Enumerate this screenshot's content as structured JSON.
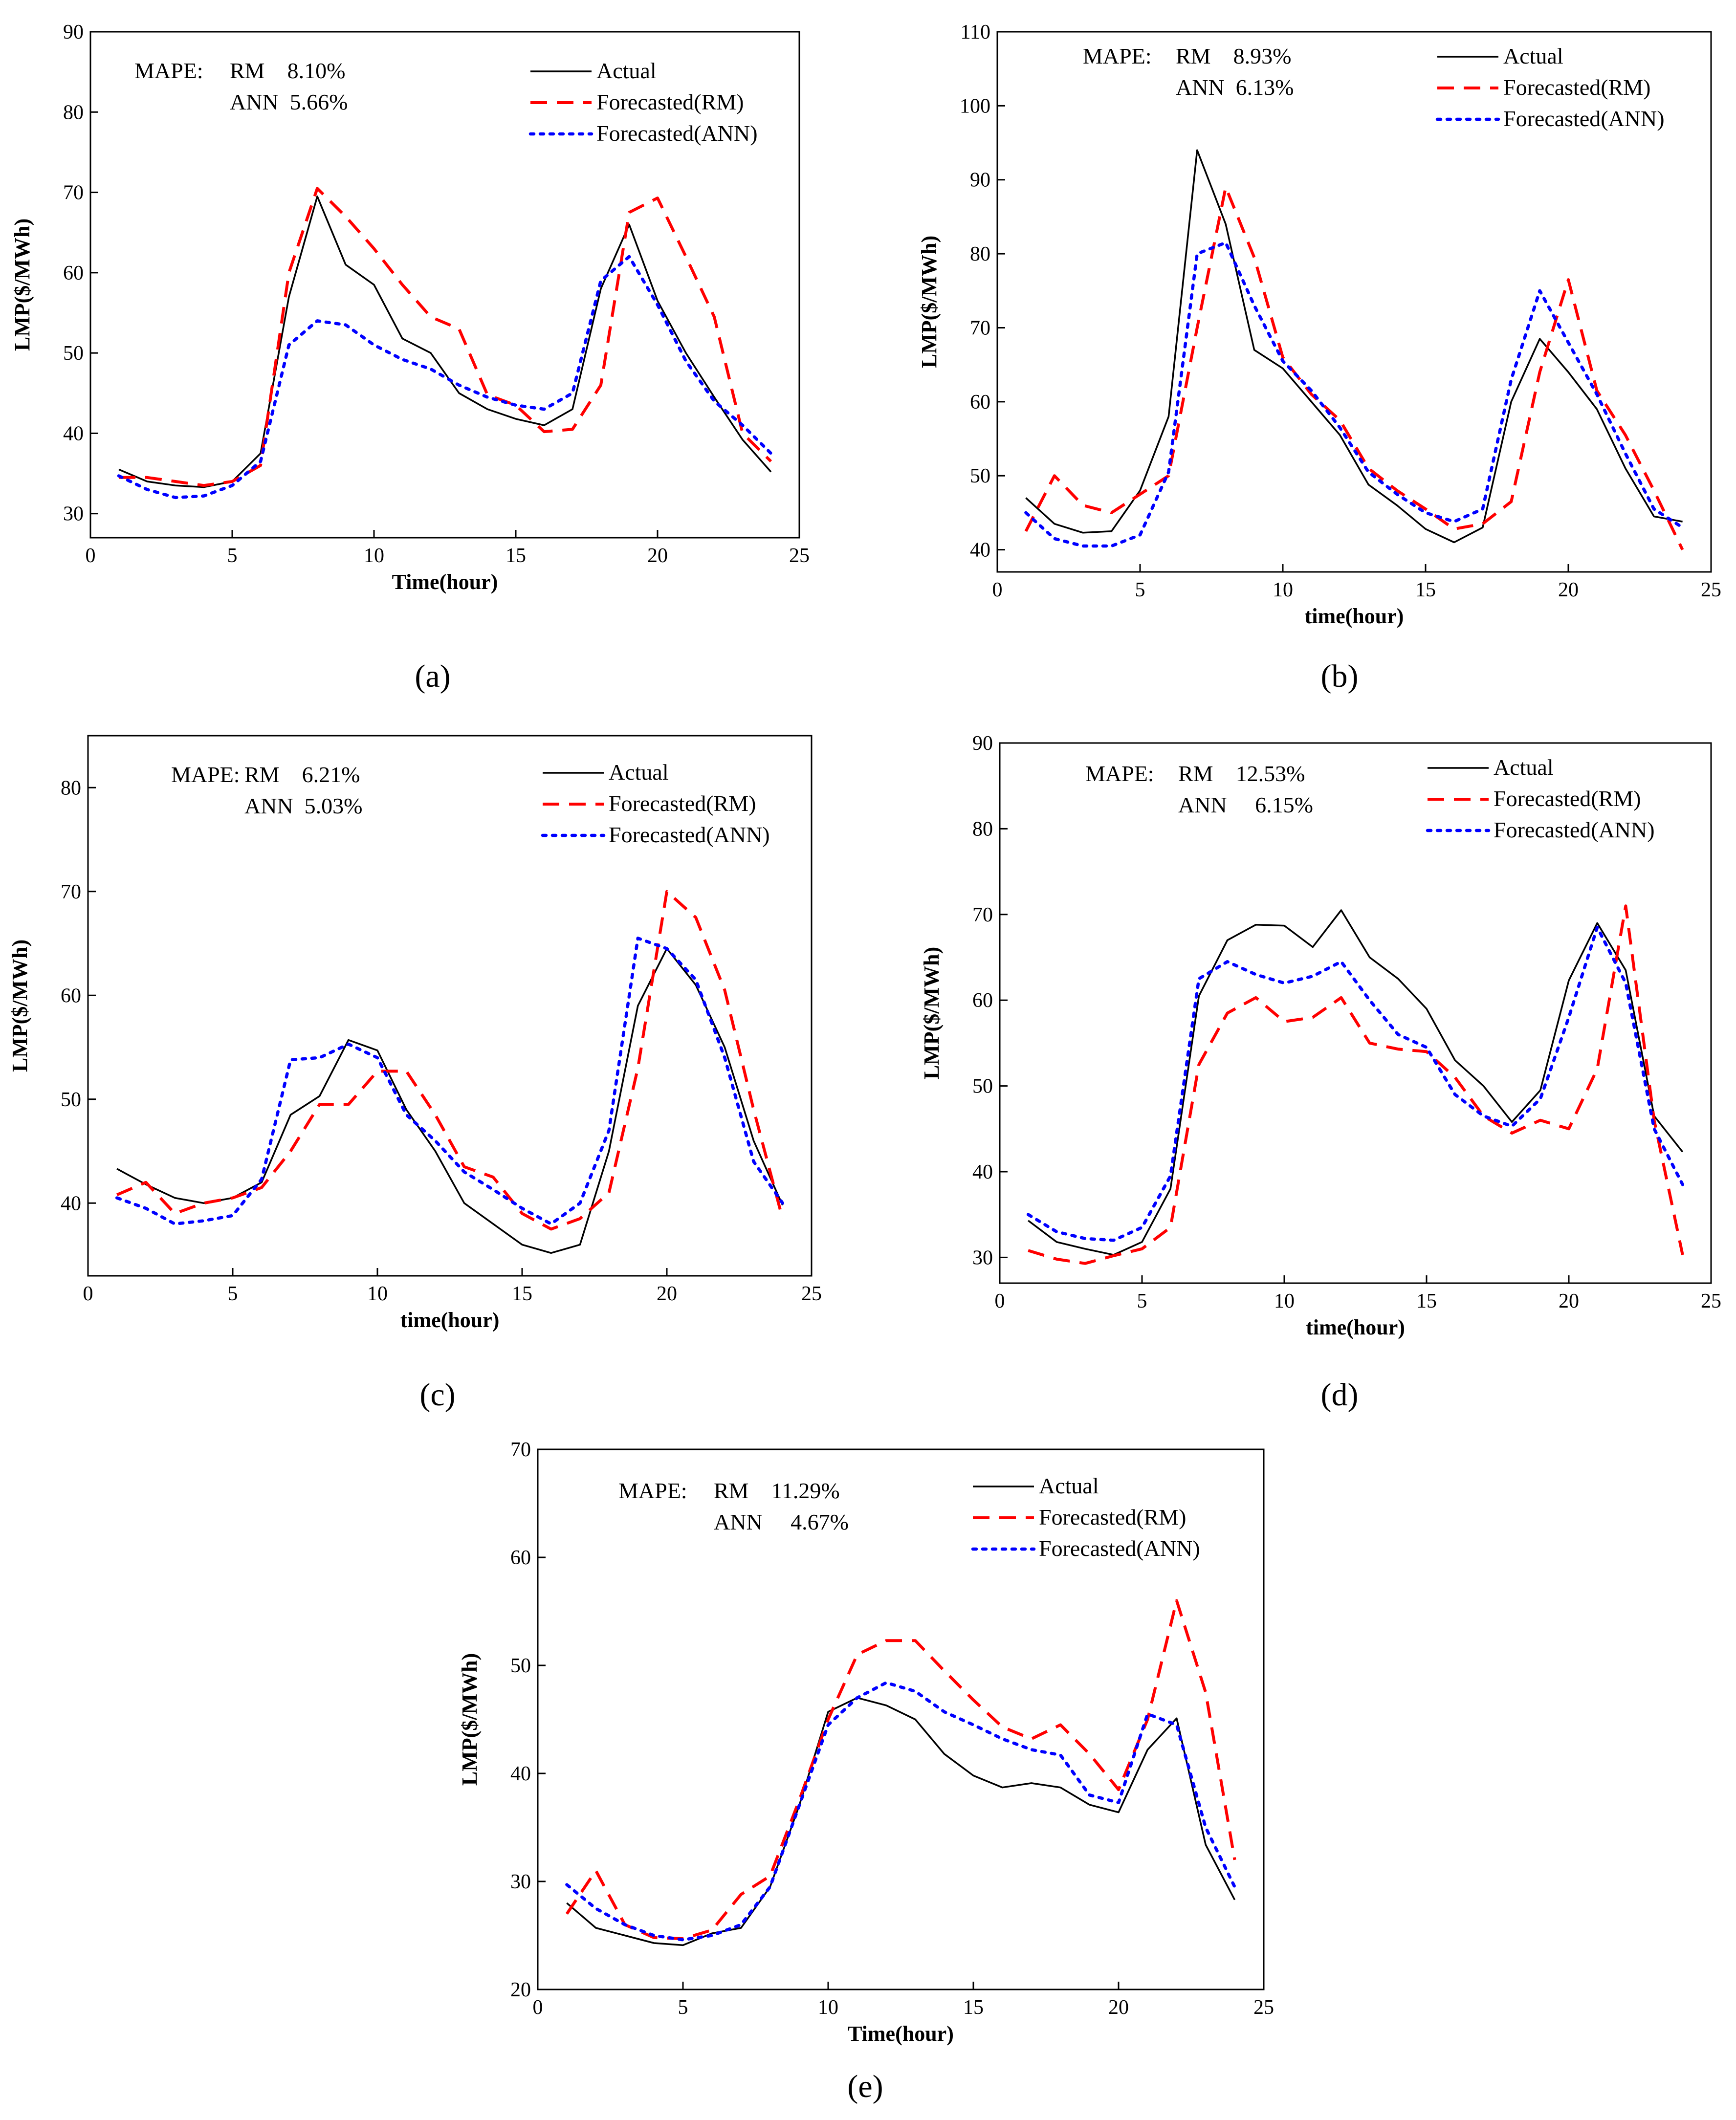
{
  "figure": {
    "legend": {
      "actual": "Actual",
      "rm": "Forecasted(RM)",
      "ann": "Forecasted(ANN)"
    },
    "colors": {
      "actual": "#000000",
      "rm": "#ff0000",
      "ann": "#0000ff"
    }
  },
  "chart_data": [
    {
      "panel": "a",
      "caption": "(a)",
      "type": "line",
      "xlabel": "Time(hour)",
      "ylabel": "LMP($/MWh)",
      "xlim": [
        0,
        25
      ],
      "ylim": [
        27,
        90
      ],
      "xticks": [
        0,
        5,
        10,
        15,
        20,
        25
      ],
      "yticks": [
        30,
        40,
        50,
        60,
        70,
        80,
        90
      ],
      "annotation": {
        "metric": "MAPE:",
        "rm": "RM    8.10%",
        "ann": "ANN  5.66%"
      },
      "x": [
        1,
        2,
        3,
        4,
        5,
        6,
        7,
        8,
        9,
        10,
        11,
        12,
        13,
        14,
        15,
        16,
        17,
        18,
        19,
        20,
        21,
        22,
        23,
        24
      ],
      "series": [
        {
          "name": "Actual",
          "style": "solid",
          "values": [
            35.5,
            34,
            33.5,
            33.3,
            34,
            37.5,
            57,
            69.5,
            61,
            58.5,
            51.8,
            50,
            45,
            43,
            41.8,
            41,
            43,
            58,
            66,
            56.5,
            50,
            44.5,
            39.2,
            35.2
          ]
        },
        {
          "name": "Forecasted(RM)",
          "style": "dashed",
          "values": [
            34.5,
            34.5,
            34,
            33.5,
            34,
            36,
            60,
            70.5,
            67,
            63,
            58.5,
            54.5,
            53,
            44.8,
            43.5,
            40.2,
            40.5,
            46,
            67.5,
            69.3,
            62,
            54.5,
            40,
            36.5
          ]
        },
        {
          "name": "Forecasted(ANN)",
          "style": "dotted",
          "values": [
            34.7,
            33,
            32,
            32.2,
            33.5,
            36.5,
            51,
            54,
            53.5,
            51,
            49.2,
            48,
            46,
            44.5,
            43.5,
            43,
            45,
            59,
            62,
            56,
            49,
            44,
            41,
            37.5
          ]
        }
      ]
    },
    {
      "panel": "b",
      "caption": "(b)",
      "type": "line",
      "xlabel": "time(hour)",
      "ylabel": "LMP($/MWh)",
      "xlim": [
        0,
        25
      ],
      "ylim": [
        37,
        110
      ],
      "xticks": [
        0,
        5,
        10,
        15,
        20,
        25
      ],
      "yticks": [
        40,
        50,
        60,
        70,
        80,
        90,
        100,
        110
      ],
      "annotation": {
        "metric": "MAPE:",
        "rm": "RM    8.93%",
        "ann": "ANN  6.13%"
      },
      "x": [
        1,
        2,
        3,
        4,
        5,
        6,
        7,
        8,
        9,
        10,
        11,
        12,
        13,
        14,
        15,
        16,
        17,
        18,
        19,
        20,
        21,
        22,
        23,
        24
      ],
      "series": [
        {
          "name": "Actual",
          "style": "solid",
          "values": [
            47,
            43.5,
            42.3,
            42.5,
            48,
            58,
            94,
            84,
            67,
            64.5,
            60,
            55.5,
            48.8,
            46,
            42.8,
            41,
            43,
            60,
            68.5,
            64,
            59,
            51,
            44.5,
            43.8
          ]
        },
        {
          "name": "Forecasted(RM)",
          "style": "dashed",
          "values": [
            42.5,
            50,
            46,
            45,
            47.5,
            50,
            70,
            89,
            79.5,
            66,
            61,
            57.5,
            51,
            48,
            45.5,
            42.8,
            43.5,
            46.5,
            64,
            76.5,
            61.5,
            55.5,
            48,
            40
          ]
        },
        {
          "name": "Forecasted(ANN)",
          "style": "dotted",
          "values": [
            45,
            41.5,
            40.5,
            40.5,
            42,
            50.5,
            80,
            81.5,
            73,
            65.5,
            61.5,
            56.5,
            50.5,
            47.5,
            45,
            43.8,
            45.5,
            63,
            75,
            68,
            61,
            53,
            45.5,
            43
          ]
        }
      ]
    },
    {
      "panel": "c",
      "caption": "(c)",
      "type": "line",
      "xlabel": "time(hour)",
      "ylabel": "LMP($/MWh)",
      "xlim": [
        0,
        25
      ],
      "ylim": [
        33,
        85
      ],
      "xticks": [
        0,
        5,
        10,
        15,
        20,
        25
      ],
      "yticks": [
        40,
        50,
        60,
        70,
        80
      ],
      "annotation": {
        "metric": "MAPE:",
        "rm": "RM    6.21%",
        "ann": "ANN  5.03%"
      },
      "x": [
        1,
        2,
        3,
        4,
        5,
        6,
        7,
        8,
        9,
        10,
        11,
        12,
        13,
        14,
        15,
        16,
        17,
        18,
        19,
        20,
        21,
        22,
        23,
        24
      ],
      "series": [
        {
          "name": "Actual",
          "style": "solid",
          "values": [
            43.3,
            41.8,
            40.5,
            40,
            40.5,
            42,
            48.5,
            50.3,
            55.7,
            54.7,
            49,
            45,
            40,
            38,
            36,
            35.2,
            36,
            45,
            59,
            64.5,
            61,
            55,
            46,
            39.8
          ]
        },
        {
          "name": "Forecasted(RM)",
          "style": "dashed",
          "values": [
            40.8,
            42,
            39,
            40,
            40.5,
            41.5,
            45,
            49.5,
            49.5,
            52.7,
            52.7,
            48.5,
            43.5,
            42.5,
            39,
            37.5,
            38.5,
            41,
            53,
            70,
            67.5,
            60.5,
            49,
            38.5
          ]
        },
        {
          "name": "Forecasted(ANN)",
          "style": "dotted",
          "values": [
            40.5,
            39.5,
            38,
            38.3,
            38.8,
            42.3,
            53.8,
            54,
            55.3,
            54,
            48.5,
            46,
            43,
            41.3,
            39.5,
            38,
            40,
            47,
            65.5,
            64.5,
            61.5,
            54,
            44,
            40
          ]
        }
      ]
    },
    {
      "panel": "d",
      "caption": "(d)",
      "type": "line",
      "xlabel": "time(hour)",
      "ylabel": "LMP($/MWh)",
      "xlim": [
        0,
        25
      ],
      "ylim": [
        27,
        90
      ],
      "xticks": [
        0,
        5,
        10,
        15,
        20,
        25
      ],
      "yticks": [
        30,
        40,
        50,
        60,
        70,
        80,
        90
      ],
      "annotation": {
        "metric": "MAPE:",
        "rm": "RM    12.53%",
        "ann": "ANN     6.15%"
      },
      "x": [
        1,
        2,
        3,
        4,
        5,
        6,
        7,
        8,
        9,
        10,
        11,
        12,
        13,
        14,
        15,
        16,
        17,
        18,
        19,
        20,
        21,
        22,
        23,
        24
      ],
      "series": [
        {
          "name": "Actual",
          "style": "solid",
          "values": [
            34.3,
            31.8,
            31,
            30.3,
            31.8,
            38,
            60.5,
            67,
            68.8,
            68.7,
            66.2,
            70.5,
            65,
            62.5,
            59,
            53,
            50,
            45.8,
            49.5,
            62.3,
            69,
            63.5,
            46.5,
            42.3
          ]
        },
        {
          "name": "Forecasted(RM)",
          "style": "dashed",
          "values": [
            30.8,
            29.8,
            29.3,
            30.2,
            31,
            33.5,
            52.5,
            58.5,
            60.3,
            57.5,
            58,
            60.3,
            55,
            54.3,
            54,
            51,
            46.5,
            44.5,
            46,
            45,
            52,
            71,
            46,
            30.3
          ]
        },
        {
          "name": "Forecasted(ANN)",
          "style": "dotted",
          "values": [
            35,
            33,
            32.2,
            32,
            33.5,
            39.5,
            62.5,
            64.5,
            63,
            62,
            62.8,
            64.5,
            60,
            56,
            54.5,
            49,
            46.5,
            45.3,
            48.5,
            58,
            68.5,
            62,
            45,
            38.5
          ]
        }
      ]
    },
    {
      "panel": "e",
      "caption": "(e)",
      "type": "line",
      "xlabel": "Time(hour)",
      "ylabel": "LMP($/MWh)",
      "xlim": [
        0,
        25
      ],
      "ylim": [
        20,
        70
      ],
      "xticks": [
        0,
        5,
        10,
        15,
        20,
        25
      ],
      "yticks": [
        20,
        30,
        40,
        50,
        60,
        70
      ],
      "annotation": {
        "metric": "MAPE:",
        "rm": "RM    11.29%",
        "ann": "ANN     4.67%"
      },
      "x": [
        1,
        2,
        3,
        4,
        5,
        6,
        7,
        8,
        9,
        10,
        11,
        12,
        13,
        14,
        15,
        16,
        17,
        18,
        19,
        20,
        21,
        22,
        23,
        24
      ],
      "series": [
        {
          "name": "Actual",
          "style": "solid",
          "values": [
            28,
            25.7,
            25,
            24.3,
            24.1,
            25.2,
            25.7,
            29.5,
            37,
            45.7,
            47,
            46.3,
            45,
            41.8,
            39.8,
            38.7,
            39.1,
            38.7,
            37.1,
            36.4,
            42.2,
            45.1,
            33.4,
            28.3
          ]
        },
        {
          "name": "Forecasted(RM)",
          "style": "dashed",
          "values": [
            27,
            31,
            26,
            24.8,
            24.7,
            25.5,
            28.8,
            30.5,
            37.5,
            45,
            51,
            52.3,
            52.3,
            49.5,
            46.8,
            44.3,
            43.2,
            44.5,
            41.8,
            38.5,
            45,
            56,
            47.5,
            32
          ]
        },
        {
          "name": "Forecasted(ANN)",
          "style": "dotted",
          "values": [
            29.7,
            27.5,
            26,
            25,
            24.6,
            25,
            26,
            29.5,
            37,
            44.5,
            47,
            48.4,
            47.6,
            45.7,
            44.5,
            43.2,
            42.2,
            41.7,
            38,
            37.3,
            45.5,
            44.5,
            35,
            29.5
          ]
        }
      ]
    }
  ]
}
